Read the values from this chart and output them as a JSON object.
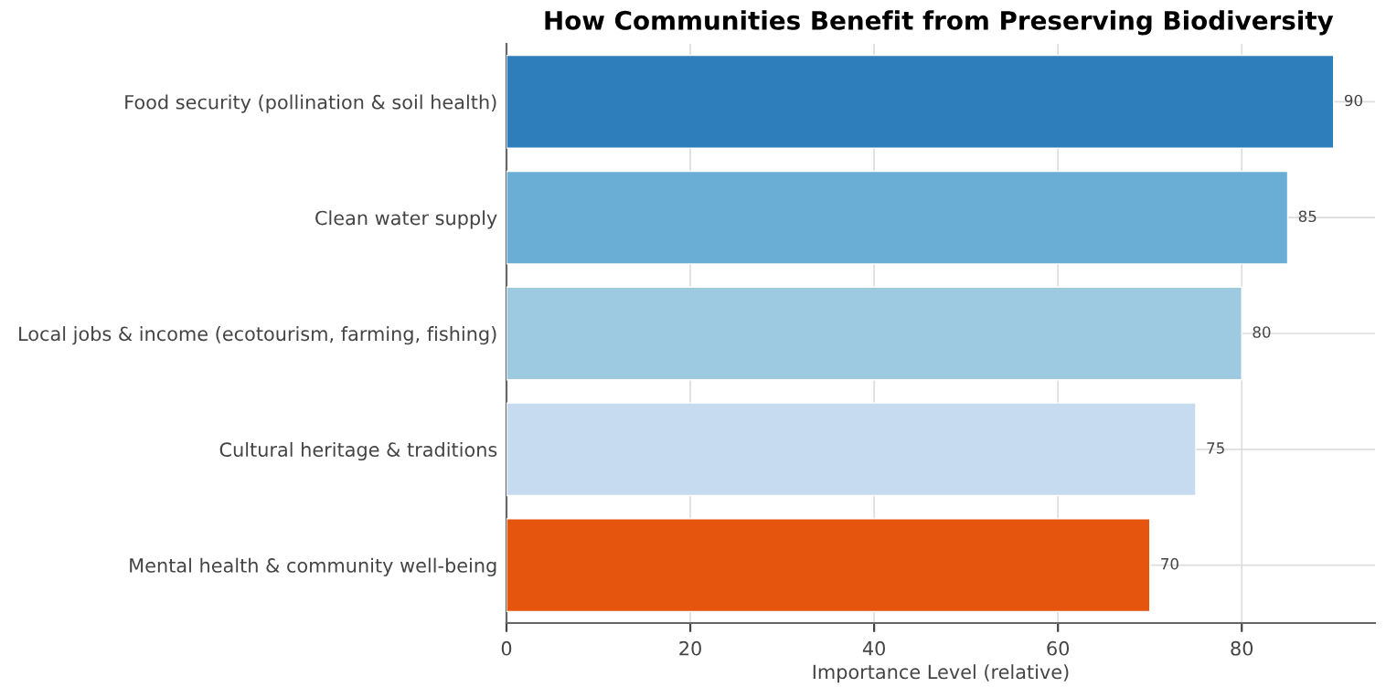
{
  "chart_data": {
    "type": "bar",
    "orientation": "horizontal",
    "title": "How Communities Benefit from Preserving Biodiversity",
    "xlabel": "Importance Level (relative)",
    "categories": [
      "Food security (pollination & soil health)",
      "Clean water supply",
      "Local jobs & income (ecotourism, farming, fishing)",
      "Cultural heritage & traditions",
      "Mental health & community well-being"
    ],
    "values": [
      90,
      85,
      80,
      75,
      70
    ],
    "colors": [
      "#2f7ebc",
      "#6aaed6",
      "#9ecae1",
      "#c6dbef",
      "#e6550d"
    ],
    "xlim": [
      0,
      94.5
    ],
    "xticks": [
      0,
      20,
      40,
      60,
      80
    ],
    "grid": true,
    "data_labels": true
  }
}
